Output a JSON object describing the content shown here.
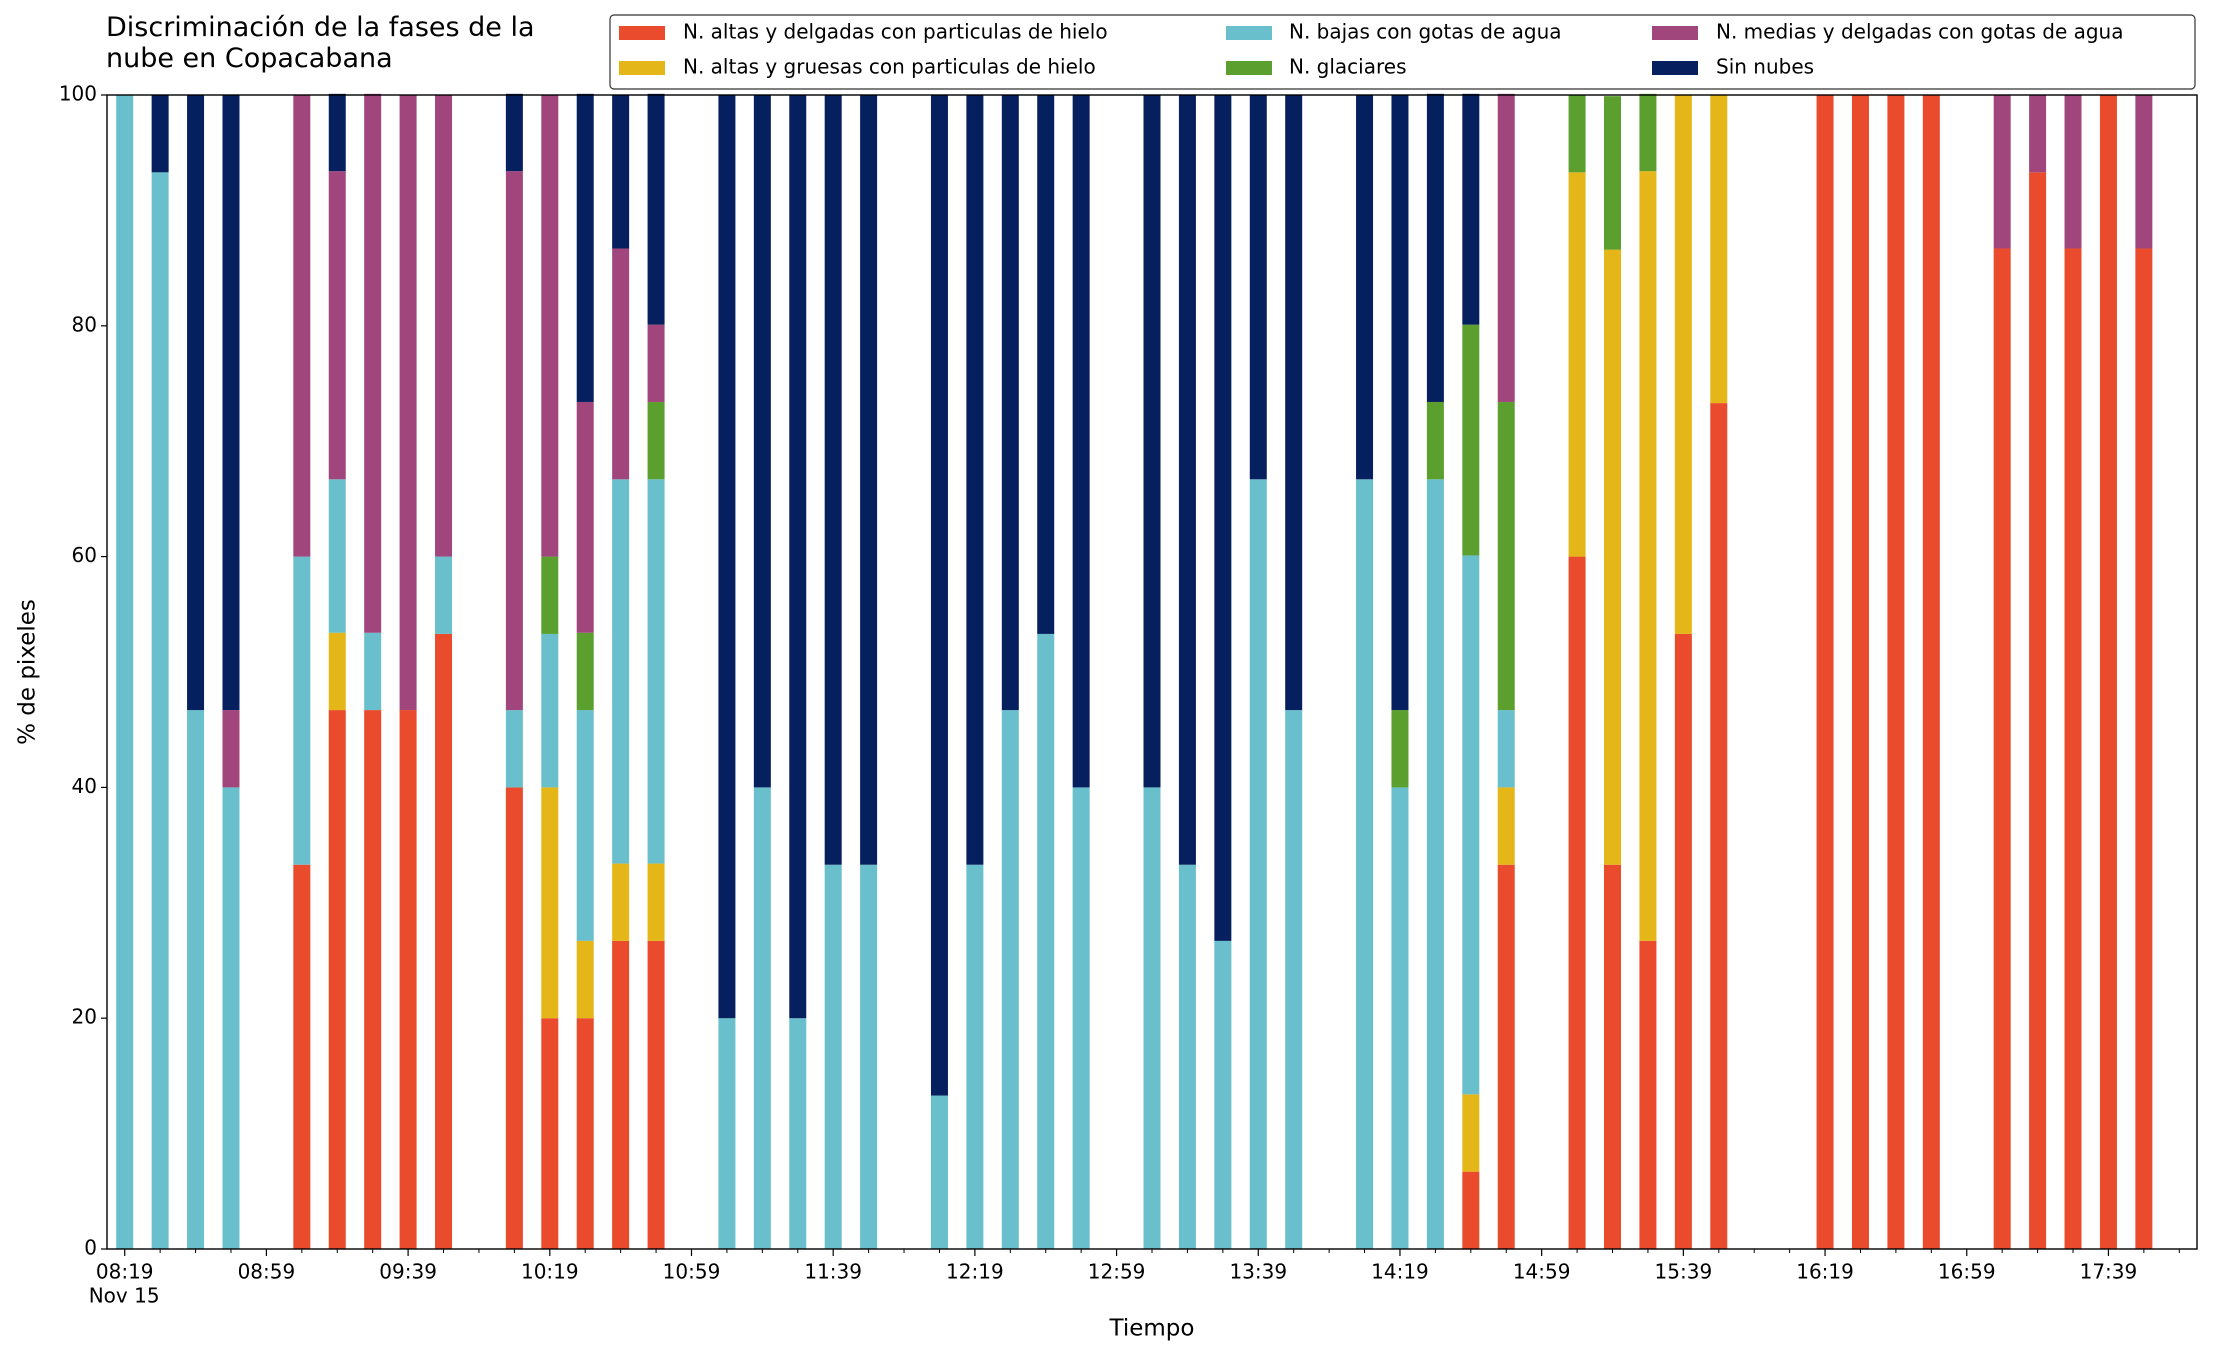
{
  "chart_data": {
    "type": "bar",
    "stacked": true,
    "title": "Discriminación de la fases de la\nnube en Copacabana",
    "xlabel": "Tiempo",
    "ylabel": "% de pixeles",
    "x": [
      "08:19",
      "08:29",
      "08:39",
      "08:49",
      "09:09",
      "09:19",
      "09:29",
      "09:39",
      "09:49",
      "10:09",
      "10:19",
      "10:29",
      "10:39",
      "10:49",
      "11:09",
      "11:19",
      "11:29",
      "11:39",
      "11:49",
      "12:09",
      "12:19",
      "12:29",
      "12:39",
      "12:49",
      "13:09",
      "13:19",
      "13:29",
      "13:39",
      "13:49",
      "14:09",
      "14:19",
      "14:29",
      "14:39",
      "14:49",
      "15:09",
      "15:19",
      "15:29",
      "15:39",
      "15:49",
      "16:19",
      "16:29",
      "16:39",
      "16:49",
      "17:09",
      "17:19",
      "17:29",
      "17:39",
      "17:49"
    ],
    "xlim": [
      "08:14",
      "18:04"
    ],
    "xticks": [
      "08:19",
      "08:59",
      "09:39",
      "10:19",
      "10:59",
      "11:39",
      "12:19",
      "12:59",
      "13:39",
      "14:19",
      "14:59",
      "15:39",
      "16:19",
      "16:59",
      "17:39"
    ],
    "xminorticks": [
      "08:29",
      "08:39",
      "08:49",
      "09:09",
      "09:19",
      "09:29",
      "09:49",
      "09:59",
      "10:09",
      "10:29",
      "10:39",
      "10:49",
      "11:09",
      "11:19",
      "11:29",
      "11:49",
      "11:59",
      "12:09",
      "12:29",
      "12:39",
      "12:49",
      "13:09",
      "13:19",
      "13:29",
      "13:49",
      "13:59",
      "14:09",
      "14:29",
      "14:39",
      "14:49",
      "15:09",
      "15:19",
      "15:29",
      "15:49",
      "15:59",
      "16:09",
      "16:29",
      "16:39",
      "16:49",
      "17:09",
      "17:19",
      "17:29",
      "17:49",
      "17:59"
    ],
    "xdate": "Nov 15",
    "ylim": [
      0,
      100
    ],
    "yticks": [
      0,
      20,
      40,
      60,
      80,
      100
    ],
    "legend": "top-right",
    "series": [
      {
        "name": "N. altas y delgadas con particulas de hielo",
        "color": "#e94b2c",
        "values": [
          0,
          0,
          0,
          0,
          33.3,
          46.7,
          46.7,
          46.7,
          53.3,
          40,
          20,
          20,
          26.7,
          26.7,
          0,
          0,
          0,
          0,
          0,
          0,
          0,
          0,
          0,
          0,
          0,
          0,
          0,
          0,
          0,
          0,
          0,
          0,
          6.7,
          33.3,
          60,
          33.3,
          26.7,
          53.3,
          73.3,
          100,
          100,
          100,
          100,
          86.7,
          93.3,
          86.7,
          100,
          86.7
        ]
      },
      {
        "name": "N. altas y gruesas con particulas de hielo",
        "color": "#e4b618",
        "values": [
          0,
          0,
          0,
          0,
          0,
          6.7,
          0,
          0,
          0,
          0,
          20,
          6.7,
          6.7,
          6.7,
          0,
          0,
          0,
          0,
          0,
          0,
          0,
          0,
          0,
          0,
          0,
          0,
          0,
          0,
          0,
          0,
          0,
          0,
          6.7,
          6.7,
          33.3,
          53.3,
          66.7,
          46.7,
          26.7,
          0,
          0,
          0,
          0,
          0,
          0,
          0,
          0,
          0
        ]
      },
      {
        "name": "N. bajas con gotas de agua",
        "color": "#69bfcb",
        "values": [
          100,
          93.3,
          46.7,
          40,
          26.7,
          13.3,
          6.7,
          0,
          6.7,
          6.7,
          13.3,
          20,
          33.3,
          33.3,
          20,
          40,
          20,
          33.3,
          33.3,
          13.3,
          33.3,
          46.7,
          53.3,
          40,
          40,
          33.3,
          26.7,
          66.7,
          46.7,
          66.7,
          40,
          66.7,
          46.7,
          6.7,
          0,
          0,
          0,
          0,
          0,
          0,
          0,
          0,
          0,
          0,
          0,
          0,
          0,
          0
        ]
      },
      {
        "name": "N. glaciares",
        "color": "#5b9f2e",
        "values": [
          0,
          0,
          0,
          0,
          0,
          0,
          0,
          0,
          0,
          0,
          6.7,
          6.7,
          0,
          6.7,
          0,
          0,
          0,
          0,
          0,
          0,
          0,
          0,
          0,
          0,
          0,
          0,
          0,
          0,
          0,
          0,
          6.7,
          6.7,
          20,
          26.7,
          6.7,
          13.3,
          6.7,
          0,
          0,
          0,
          0,
          0,
          0,
          0,
          0,
          0,
          0,
          0
        ]
      },
      {
        "name": "N. medias y delgadas con gotas de agua",
        "color": "#a1467d",
        "values": [
          0,
          0,
          0,
          6.7,
          40,
          26.7,
          46.7,
          53.3,
          40,
          46.7,
          40,
          20,
          20,
          6.7,
          0,
          0,
          0,
          0,
          0,
          0,
          0,
          0,
          0,
          0,
          0,
          0,
          0,
          0,
          0,
          0,
          0,
          0,
          0,
          26.7,
          0,
          0,
          0,
          0,
          0,
          0,
          0,
          0,
          0,
          13.3,
          6.7,
          13.3,
          0,
          13.3
        ]
      },
      {
        "name": "Sin nubes",
        "color": "#061f5e",
        "values": [
          0,
          6.7,
          53.3,
          53.3,
          0,
          6.7,
          0,
          0,
          0,
          6.7,
          0,
          26.7,
          13.3,
          20,
          80,
          60,
          80,
          66.7,
          66.7,
          86.7,
          66.7,
          53.3,
          46.7,
          60,
          60,
          66.7,
          73.3,
          33.3,
          53.3,
          33.3,
          53.3,
          26.7,
          20,
          0,
          0,
          0,
          0,
          0,
          0,
          0,
          0,
          0,
          0,
          0,
          0,
          0,
          0,
          0
        ]
      }
    ]
  }
}
